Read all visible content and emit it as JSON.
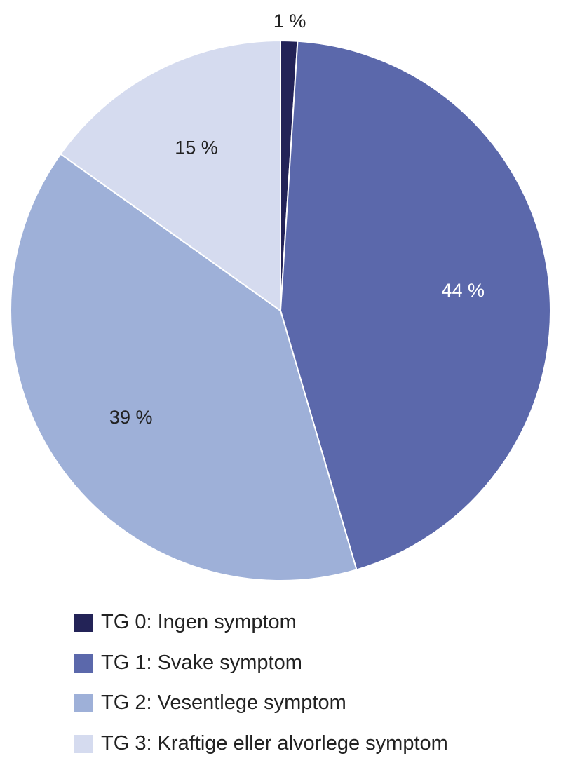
{
  "chart_data": {
    "type": "pie",
    "title": "",
    "start_angle_deg": 0,
    "direction": "clockwise",
    "slices": [
      {
        "name": "TG 0: Ingen symptom",
        "value": 1,
        "label": "1 %",
        "color": "#232357",
        "label_color": "#222222",
        "label_position": "outside"
      },
      {
        "name": "TG 1: Svake symptom",
        "value": 44,
        "label": "44 %",
        "color": "#5b68ab",
        "label_color": "#ffffff",
        "label_position": "inside"
      },
      {
        "name": "TG 2: Vesentlege symptom",
        "value": 39,
        "label": "39 %",
        "color": "#9eb0d8",
        "label_color": "#222222",
        "label_position": "inside"
      },
      {
        "name": "TG 3: Kraftige eller alvorlege symptom",
        "value": 15,
        "label": "15 %",
        "color": "#d5dbef",
        "label_color": "#222222",
        "label_position": "inside"
      }
    ],
    "legend_placement": "bottom-left"
  }
}
